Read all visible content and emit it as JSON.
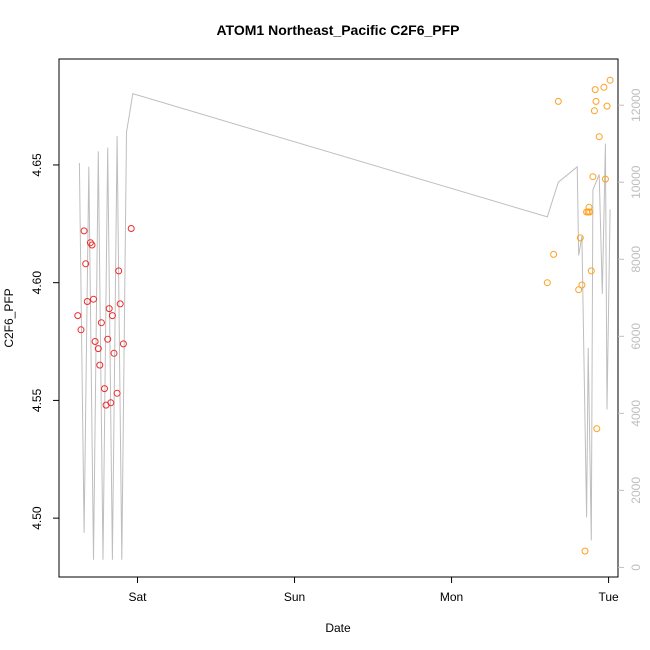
{
  "chart_data": {
    "type": "scatter",
    "title": "ATOM1 Northeast_Pacific C2F6_PFP",
    "xlabel": "Date",
    "ylabel": "C2F6_PFP",
    "x_ticks": [
      {
        "day": 1.0,
        "label": "Sat"
      },
      {
        "day": 2.0,
        "label": "Sun"
      },
      {
        "day": 3.0,
        "label": "Mon"
      },
      {
        "day": 4.0,
        "label": "Tue"
      }
    ],
    "xlim": [
      0.5,
      4.06
    ],
    "ylim": [
      4.475,
      4.695
    ],
    "y_ticks": [
      4.5,
      4.55,
      4.6,
      4.65
    ],
    "y_tick_labels": [
      "4.50",
      "4.55",
      "4.60",
      "4.65"
    ],
    "y2lim": [
      -250,
      13200
    ],
    "y2_ticks": [
      0,
      2000,
      4000,
      6000,
      8000,
      10000,
      12000
    ],
    "y2_tick_labels": [
      "0",
      "2000",
      "4000",
      "6000",
      "8000",
      "10000",
      "12000"
    ],
    "colors": {
      "group1": "#ee2c2c",
      "group2": "#ffa020",
      "altitude": "#bebebe",
      "axis": "#000000",
      "right_axis": "#bebebe"
    },
    "series": [
      {
        "color": "#ee2c2c",
        "points": [
          [
            0.62,
            4.586
          ],
          [
            0.64,
            4.58
          ],
          [
            0.66,
            4.622
          ],
          [
            0.67,
            4.608
          ],
          [
            0.68,
            4.592
          ],
          [
            0.7,
            4.617
          ],
          [
            0.71,
            4.616
          ],
          [
            0.72,
            4.593
          ],
          [
            0.73,
            4.575
          ],
          [
            0.75,
            4.572
          ],
          [
            0.76,
            4.565
          ],
          [
            0.77,
            4.583
          ],
          [
            0.79,
            4.555
          ],
          [
            0.8,
            4.548
          ],
          [
            0.81,
            4.576
          ],
          [
            0.82,
            4.589
          ],
          [
            0.83,
            4.549
          ],
          [
            0.84,
            4.586
          ],
          [
            0.85,
            4.57
          ],
          [
            0.87,
            4.553
          ],
          [
            0.88,
            4.605
          ],
          [
            0.89,
            4.591
          ],
          [
            0.91,
            4.574
          ],
          [
            0.96,
            4.623
          ]
        ]
      },
      {
        "color": "#ffa020",
        "points": [
          [
            3.61,
            4.6
          ],
          [
            3.65,
            4.612
          ],
          [
            3.68,
            4.677
          ],
          [
            3.81,
            4.597
          ],
          [
            3.82,
            4.619
          ],
          [
            3.83,
            4.599
          ],
          [
            3.85,
            4.486
          ],
          [
            3.86,
            4.63
          ],
          [
            3.87,
            4.63
          ],
          [
            3.875,
            4.632
          ],
          [
            3.88,
            4.63
          ],
          [
            3.89,
            4.605
          ],
          [
            3.9,
            4.645
          ],
          [
            3.91,
            4.673
          ],
          [
            3.915,
            4.682
          ],
          [
            3.92,
            4.677
          ],
          [
            3.925,
            4.538
          ],
          [
            3.94,
            4.662
          ],
          [
            3.97,
            4.683
          ],
          [
            3.98,
            4.644
          ],
          [
            3.99,
            4.675
          ],
          [
            4.01,
            4.686
          ]
        ]
      }
    ],
    "altitude_line": [
      [
        0.63,
        10500
      ],
      [
        0.66,
        900
      ],
      [
        0.69,
        10400
      ],
      [
        0.72,
        200
      ],
      [
        0.75,
        10800
      ],
      [
        0.78,
        200
      ],
      [
        0.81,
        10900
      ],
      [
        0.84,
        200
      ],
      [
        0.87,
        11200
      ],
      [
        0.9,
        200
      ],
      [
        0.93,
        11300
      ],
      [
        0.95,
        11800
      ],
      [
        0.97,
        12300
      ],
      [
        3.61,
        9100
      ],
      [
        3.68,
        10000
      ],
      [
        3.8,
        10400
      ],
      [
        3.81,
        8100
      ],
      [
        3.83,
        8600
      ],
      [
        3.86,
        1300
      ],
      [
        3.87,
        5700
      ],
      [
        3.89,
        700
      ],
      [
        3.9,
        9800
      ],
      [
        3.92,
        10000
      ],
      [
        3.94,
        10200
      ],
      [
        3.96,
        7100
      ],
      [
        3.98,
        11000
      ],
      [
        3.99,
        4100
      ],
      [
        4.01,
        9300
      ]
    ]
  }
}
